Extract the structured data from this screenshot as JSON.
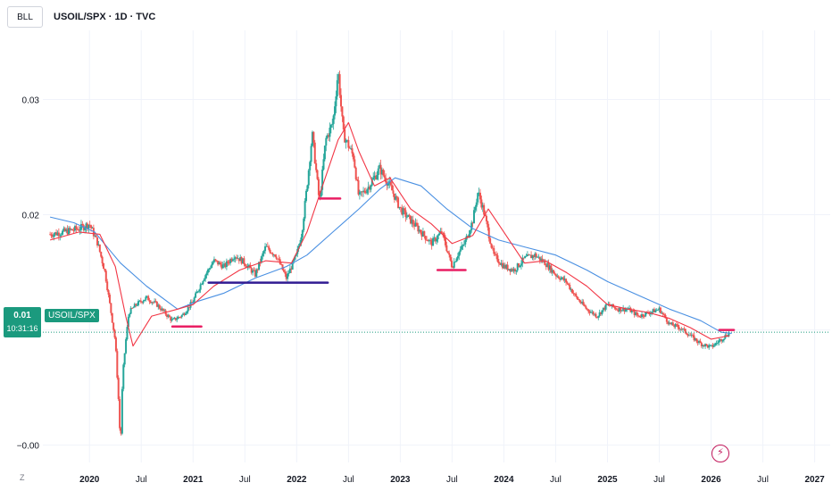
{
  "header": {
    "symbol_box": "BLL",
    "title": "USOIL/SPX · 1D · TVC"
  },
  "footer": {
    "zoom_label": "Z"
  },
  "price_badge": {
    "value": "0.01",
    "countdown": "10:31:16"
  },
  "series_tag": "USOIL/SPX",
  "icons": {
    "alert": "lightning-bolt-icon"
  },
  "colors": {
    "up": "#26a69a",
    "down": "#ef5350",
    "ma_fast": "#f23645",
    "ma_slow": "#2962ff",
    "level_red": "#e91e63",
    "level_navy": "#311b92",
    "grid": "#f0f3fa",
    "price_line": "#1b9a7e"
  },
  "chart_data": {
    "type": "candlestick",
    "y_ticks": [
      "0.03",
      "0.02",
      "0.01",
      "−0.00"
    ],
    "y_tick_values": [
      0.03,
      0.02,
      0.01,
      0.0
    ],
    "ylim": [
      -0.0015,
      0.036
    ],
    "x_ticks": [
      "2020",
      "Jul",
      "2021",
      "Jul",
      "2022",
      "Jul",
      "2023",
      "Jul",
      "2024",
      "Jul",
      "2025",
      "Jul",
      "2026",
      "Jul",
      "2027"
    ],
    "x_tick_values": [
      2020.0,
      2020.5,
      2021.0,
      2021.5,
      2022.0,
      2022.5,
      2023.0,
      2023.5,
      2024.0,
      2024.5,
      2025.0,
      2025.5,
      2026.0,
      2026.5,
      2027.0
    ],
    "xlim": [
      2019.55,
      2027.15
    ],
    "current_price": 0.0098,
    "price": {
      "x": [
        2019.62,
        2019.75,
        2019.9,
        2020.0,
        2020.08,
        2020.15,
        2020.2,
        2020.25,
        2020.28,
        2020.3,
        2020.32,
        2020.35,
        2020.38,
        2020.45,
        2020.55,
        2020.65,
        2020.8,
        2020.9,
        2021.0,
        2021.1,
        2021.2,
        2021.3,
        2021.4,
        2021.5,
        2021.6,
        2021.7,
        2021.8,
        2021.9,
        2022.0,
        2022.05,
        2022.1,
        2022.15,
        2022.18,
        2022.22,
        2022.28,
        2022.35,
        2022.4,
        2022.45,
        2022.5,
        2022.55,
        2022.6,
        2022.7,
        2022.8,
        2022.9,
        2023.0,
        2023.1,
        2023.2,
        2023.3,
        2023.4,
        2023.5,
        2023.55,
        2023.62,
        2023.7,
        2023.75,
        2023.8,
        2023.85,
        2023.9,
        2024.0,
        2024.1,
        2024.2,
        2024.3,
        2024.4,
        2024.5,
        2024.6,
        2024.7,
        2024.8,
        2024.9,
        2025.0,
        2025.1,
        2025.2,
        2025.3,
        2025.4,
        2025.5,
        2025.6,
        2025.7,
        2025.8,
        2025.9,
        2026.0,
        2026.1,
        2026.18
      ],
      "y": [
        0.0183,
        0.0185,
        0.0188,
        0.0192,
        0.0175,
        0.015,
        0.012,
        0.009,
        0.004,
        -0.0002,
        0.006,
        0.009,
        0.0115,
        0.0122,
        0.0128,
        0.0122,
        0.0108,
        0.0113,
        0.0125,
        0.0145,
        0.016,
        0.0155,
        0.0165,
        0.0158,
        0.0148,
        0.0172,
        0.0165,
        0.0145,
        0.0165,
        0.0185,
        0.0225,
        0.027,
        0.0245,
        0.021,
        0.0265,
        0.028,
        0.0325,
        0.027,
        0.026,
        0.025,
        0.0215,
        0.0225,
        0.024,
        0.0225,
        0.0205,
        0.0195,
        0.0185,
        0.0175,
        0.0185,
        0.0155,
        0.0165,
        0.0175,
        0.0195,
        0.022,
        0.0205,
        0.0185,
        0.0165,
        0.0155,
        0.0152,
        0.0162,
        0.0165,
        0.0158,
        0.0148,
        0.0142,
        0.0128,
        0.0118,
        0.0112,
        0.0122,
        0.0118,
        0.0118,
        0.0112,
        0.0115,
        0.0118,
        0.0105,
        0.0102,
        0.0095,
        0.0088,
        0.0085,
        0.0092,
        0.0098
      ]
    },
    "ma_fast": {
      "x": [
        2019.62,
        2019.9,
        2020.1,
        2020.25,
        2020.35,
        2020.42,
        2020.6,
        2020.85,
        2021.0,
        2021.2,
        2021.45,
        2021.7,
        2021.95,
        2022.1,
        2022.25,
        2022.4,
        2022.5,
        2022.6,
        2022.75,
        2022.9,
        2023.1,
        2023.3,
        2023.5,
        2023.7,
        2023.85,
        2024.0,
        2024.2,
        2024.4,
        2024.6,
        2024.8,
        2025.0,
        2025.2,
        2025.4,
        2025.6,
        2025.8,
        2026.0,
        2026.18
      ],
      "y": [
        0.0178,
        0.0185,
        0.0183,
        0.0155,
        0.0112,
        0.0086,
        0.0112,
        0.0118,
        0.0122,
        0.0138,
        0.0152,
        0.016,
        0.0158,
        0.0185,
        0.0225,
        0.0265,
        0.028,
        0.0255,
        0.0225,
        0.0232,
        0.0205,
        0.0192,
        0.0175,
        0.0182,
        0.0205,
        0.0185,
        0.0158,
        0.016,
        0.015,
        0.0138,
        0.0122,
        0.0118,
        0.0115,
        0.011,
        0.0102,
        0.0092,
        0.0095
      ]
    },
    "ma_slow": {
      "x": [
        2019.62,
        2019.85,
        2020.05,
        2020.3,
        2020.55,
        2020.85,
        2021.05,
        2021.3,
        2021.6,
        2021.9,
        2022.1,
        2022.35,
        2022.6,
        2022.8,
        2022.95,
        2023.2,
        2023.45,
        2023.7,
        2023.95,
        2024.2,
        2024.5,
        2024.8,
        2025.0,
        2025.3,
        2025.6,
        2025.9,
        2026.1,
        2026.2
      ],
      "y": [
        0.0198,
        0.0193,
        0.0185,
        0.0158,
        0.0138,
        0.0118,
        0.0125,
        0.0132,
        0.0145,
        0.0155,
        0.0165,
        0.0185,
        0.0205,
        0.0222,
        0.0232,
        0.0225,
        0.0205,
        0.0188,
        0.0178,
        0.0172,
        0.0165,
        0.0152,
        0.0142,
        0.013,
        0.0118,
        0.0108,
        0.0098,
        0.0097
      ]
    },
    "levels": [
      {
        "x": [
          2020.8,
          2021.08
        ],
        "y": 0.0103,
        "color": "#e91e63"
      },
      {
        "x": [
          2021.15,
          2022.3
        ],
        "y": 0.0141,
        "color": "#311b92"
      },
      {
        "x": [
          2022.22,
          2022.42
        ],
        "y": 0.0214,
        "color": "#e91e63"
      },
      {
        "x": [
          2023.36,
          2023.63
        ],
        "y": 0.0152,
        "color": "#e91e63"
      },
      {
        "x": [
          2026.08,
          2026.22
        ],
        "y": 0.01,
        "color": "#e91e63"
      }
    ]
  }
}
